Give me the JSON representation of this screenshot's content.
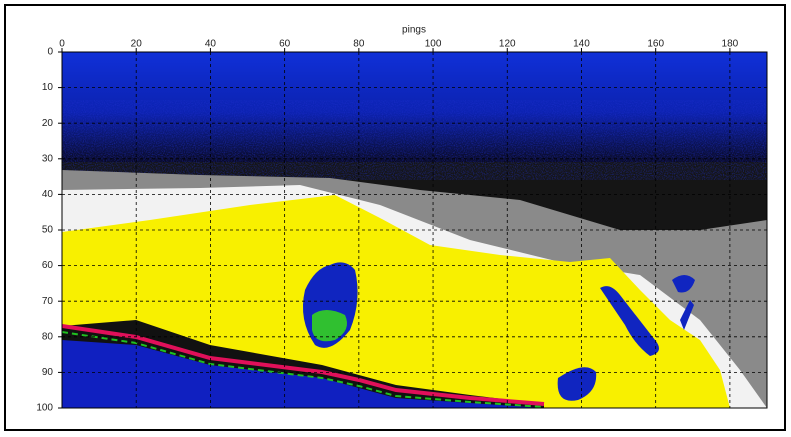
{
  "chart_data": {
    "type": "heatmap",
    "x_label": "pings",
    "xlim": [
      0,
      190
    ],
    "xticks": [
      0,
      20,
      40,
      60,
      80,
      100,
      120,
      140,
      160,
      180
    ],
    "ylim": [
      0,
      100
    ],
    "yticks": [
      0,
      10,
      20,
      30,
      40,
      50,
      60,
      70,
      80,
      90,
      100
    ],
    "y_inverted": true,
    "grid": true
  }
}
